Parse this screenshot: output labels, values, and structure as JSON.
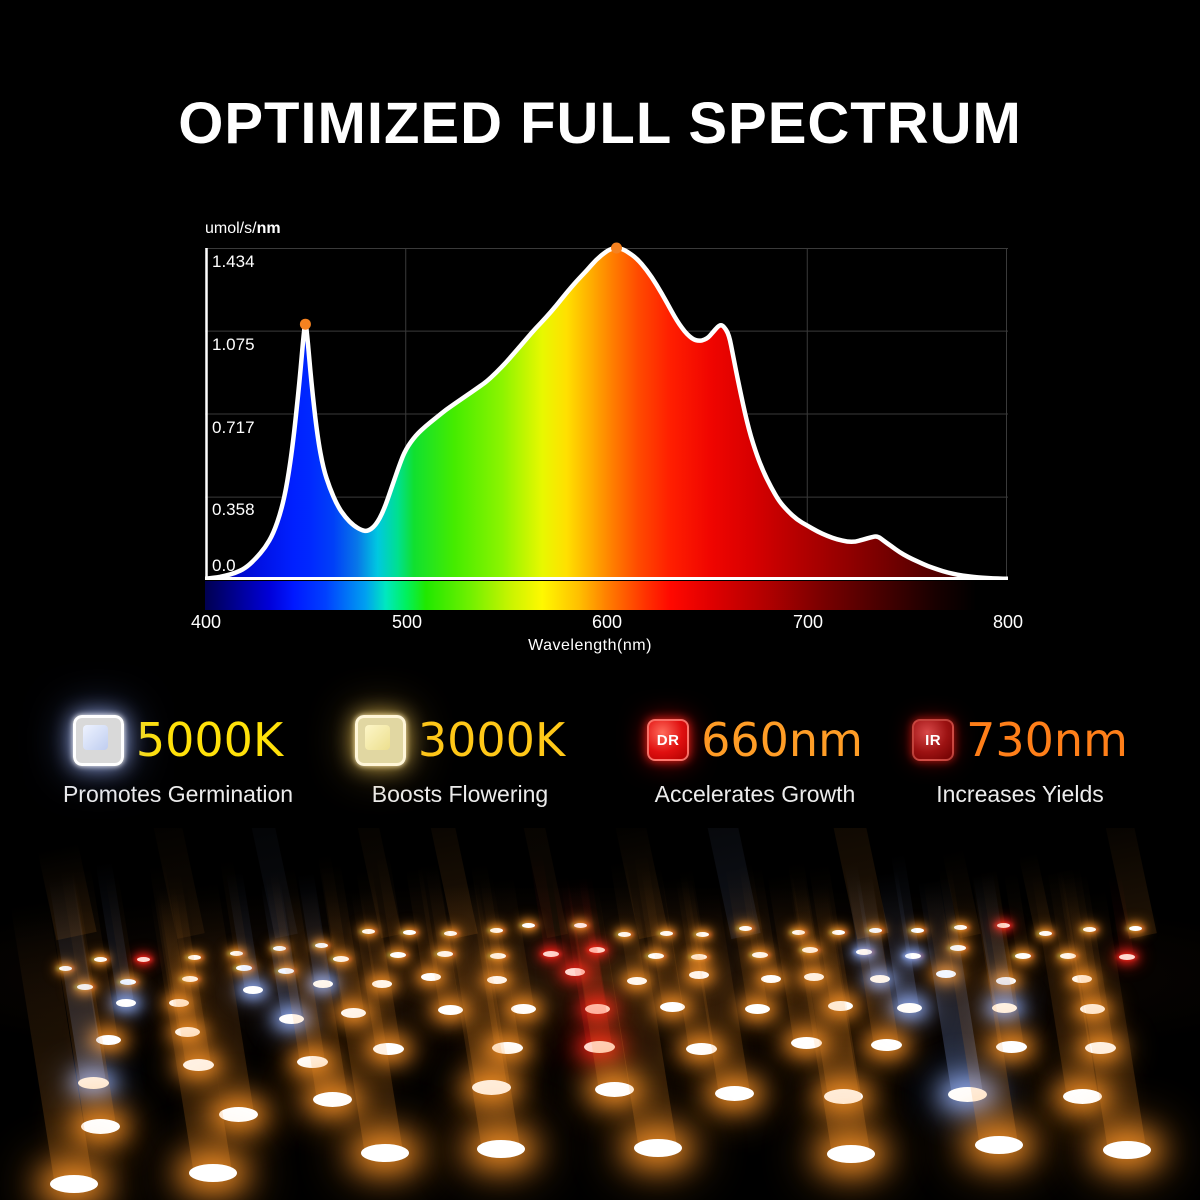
{
  "title": "OPTIMIZED FULL SPECTRUM",
  "chart": {
    "y_axis_label_prefix": "umol/s/",
    "y_axis_label_bold": "nm",
    "y_ticks": [
      "1.434",
      "1.075",
      "0.717",
      "0.358",
      "0.0"
    ],
    "x_ticks": [
      "400",
      "500",
      "600",
      "700",
      "800"
    ],
    "x_axis_label": "Wavelength(nm)"
  },
  "chart_data": {
    "type": "area",
    "title": "",
    "xlabel": "Wavelength(nm)",
    "ylabel": "umol/s/nm",
    "xlim": [
      400,
      800
    ],
    "ylim": [
      0,
      1.434
    ],
    "grid": true,
    "fill_style": "visible-light-spectrum-gradient",
    "line_color": "#ffffff",
    "points": [
      [
        400,
        0.005
      ],
      [
        405,
        0.01
      ],
      [
        410,
        0.018
      ],
      [
        415,
        0.03
      ],
      [
        420,
        0.05
      ],
      [
        425,
        0.09
      ],
      [
        430,
        0.14
      ],
      [
        434,
        0.2
      ],
      [
        438,
        0.3
      ],
      [
        441,
        0.42
      ],
      [
        444,
        0.6
      ],
      [
        447,
        0.85
      ],
      [
        449.3,
        1.08
      ],
      [
        450,
        1.105
      ],
      [
        450.7,
        1.08
      ],
      [
        453,
        0.85
      ],
      [
        456,
        0.62
      ],
      [
        459,
        0.48
      ],
      [
        462,
        0.4
      ],
      [
        466,
        0.32
      ],
      [
        470,
        0.27
      ],
      [
        474,
        0.235
      ],
      [
        478,
        0.215
      ],
      [
        481,
        0.21
      ],
      [
        485,
        0.235
      ],
      [
        489,
        0.3
      ],
      [
        493,
        0.4
      ],
      [
        497,
        0.5
      ],
      [
        500,
        0.565
      ],
      [
        505,
        0.625
      ],
      [
        510,
        0.665
      ],
      [
        515,
        0.7
      ],
      [
        520,
        0.735
      ],
      [
        525,
        0.765
      ],
      [
        530,
        0.795
      ],
      [
        535,
        0.825
      ],
      [
        540,
        0.855
      ],
      [
        545,
        0.895
      ],
      [
        550,
        0.94
      ],
      [
        555,
        0.99
      ],
      [
        560,
        1.04
      ],
      [
        565,
        1.09
      ],
      [
        570,
        1.135
      ],
      [
        575,
        1.185
      ],
      [
        580,
        1.24
      ],
      [
        585,
        1.29
      ],
      [
        590,
        1.335
      ],
      [
        595,
        1.385
      ],
      [
        600,
        1.42
      ],
      [
        602.5,
        1.431
      ],
      [
        605,
        1.434
      ],
      [
        607.5,
        1.431
      ],
      [
        610,
        1.42
      ],
      [
        615,
        1.39
      ],
      [
        620,
        1.34
      ],
      [
        625,
        1.275
      ],
      [
        630,
        1.2
      ],
      [
        635,
        1.12
      ],
      [
        640,
        1.06
      ],
      [
        645,
        1.03
      ],
      [
        650,
        1.04
      ],
      [
        653,
        1.07
      ],
      [
        655.5,
        1.095
      ],
      [
        657,
        1.102
      ],
      [
        658.5,
        1.095
      ],
      [
        661,
        1.06
      ],
      [
        663,
        0.97
      ],
      [
        666,
        0.84
      ],
      [
        670,
        0.68
      ],
      [
        674,
        0.56
      ],
      [
        678,
        0.47
      ],
      [
        682,
        0.4
      ],
      [
        686,
        0.34
      ],
      [
        690,
        0.3
      ],
      [
        695,
        0.26
      ],
      [
        700,
        0.235
      ],
      [
        705,
        0.21
      ],
      [
        710,
        0.19
      ],
      [
        715,
        0.175
      ],
      [
        720,
        0.165
      ],
      [
        724,
        0.165
      ],
      [
        728,
        0.175
      ],
      [
        732,
        0.185
      ],
      [
        735,
        0.19
      ],
      [
        738,
        0.17
      ],
      [
        742,
        0.145
      ],
      [
        746,
        0.12
      ],
      [
        750,
        0.1
      ],
      [
        755,
        0.08
      ],
      [
        760,
        0.06
      ],
      [
        765,
        0.045
      ],
      [
        770,
        0.032
      ],
      [
        775,
        0.022
      ],
      [
        780,
        0.016
      ],
      [
        785,
        0.011
      ],
      [
        790,
        0.008
      ],
      [
        795,
        0.006
      ],
      [
        800,
        0.005
      ]
    ],
    "peak_markers": [
      {
        "wavelength": 450,
        "value": 1.105
      },
      {
        "wavelength": 605,
        "value": 1.434
      }
    ],
    "peak_marker_color": "#F58220"
  },
  "features": [
    {
      "value": "5000K",
      "label": "Promotes Germination",
      "icon": "white-led",
      "icon_text": "",
      "value_color": "#FFE10A"
    },
    {
      "value": "3000K",
      "label": "Boosts Flowering",
      "icon": "warm-white-led",
      "icon_text": "",
      "value_color": "#FFC818"
    },
    {
      "value": "660nm",
      "label": "Accelerates Growth",
      "icon": "deep-red-led",
      "icon_text": "DR",
      "value_color": "#FF9D26"
    },
    {
      "value": "730nm",
      "label": "Increases Yields",
      "icon": "infrared-led",
      "icon_text": "IR",
      "value_color": "#FF7F19"
    }
  ],
  "colors": {
    "background": "#000000",
    "title_text": "#ffffff",
    "axis_text": "#ffffff",
    "grid_line": "#3a3a3a",
    "curve_stroke": "#ffffff",
    "led_warm_glow": "#FF9628",
    "led_cool_glow": "#96B4FF",
    "led_red": "#FF2020",
    "label_text": "#ECECEC"
  }
}
